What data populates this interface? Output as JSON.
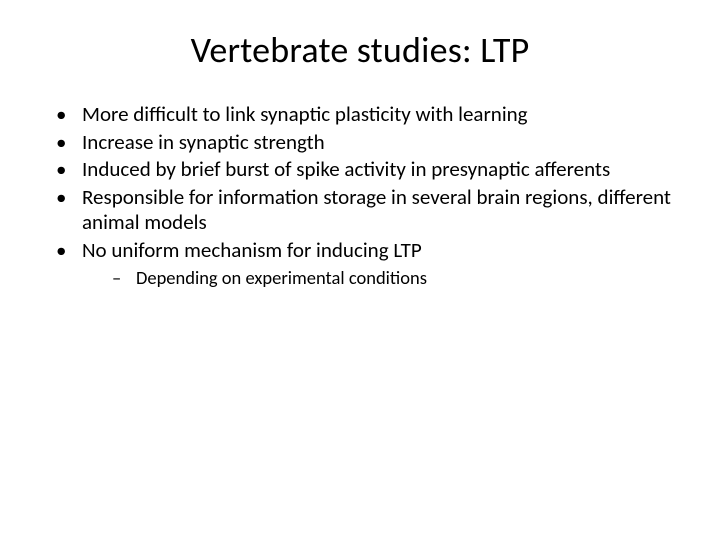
{
  "slide": {
    "title": "Vertebrate studies: LTP",
    "bullets": [
      {
        "text": "More difficult to link synaptic plasticity with learning"
      },
      {
        "text": "Increase in synaptic strength"
      },
      {
        "text": "Induced by brief burst of spike activity in presynaptic afferents"
      },
      {
        "text": "Responsible for information storage in several brain regions, different animal models"
      },
      {
        "text": "No uniform mechanism for inducing LTP",
        "sub": [
          {
            "text": "Depending on experimental conditions"
          }
        ]
      }
    ],
    "styles": {
      "background_color": "#ffffff",
      "text_color": "#000000",
      "title_fontsize_pt": 28,
      "body_fontsize_pt": 16,
      "sub_fontsize_pt": 14,
      "font_family": "Calibri"
    }
  }
}
